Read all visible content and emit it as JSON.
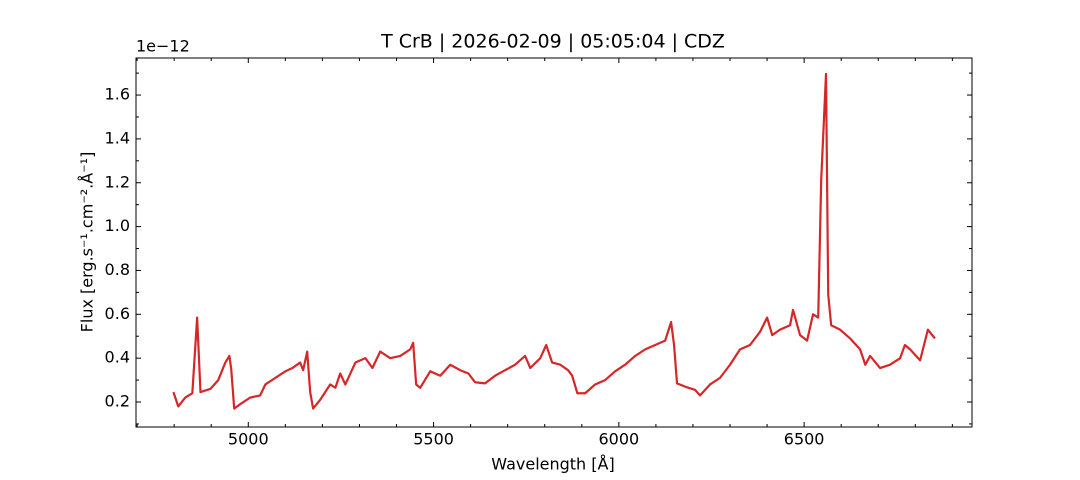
{
  "chart_data": {
    "type": "line",
    "title": "T CrB | 2026-02-09 | 05:05:04 | CDZ",
    "x_label": "Wavelength [Å]",
    "y_label": "Flux [erg.s⁻¹.cm⁻².Å⁻¹]",
    "y_offset_label": "1e−12",
    "color": "#d62728",
    "x": [
      4798,
      4811,
      4830,
      4849,
      4862,
      4871,
      4898,
      4919,
      4938,
      4949,
      4954,
      4962,
      4978,
      5005,
      5032,
      5046,
      5073,
      5100,
      5119,
      5140,
      5148,
      5159,
      5167,
      5175,
      5194,
      5221,
      5235,
      5248,
      5262,
      5289,
      5316,
      5335,
      5356,
      5383,
      5410,
      5437,
      5445,
      5453,
      5464,
      5491,
      5518,
      5545,
      5572,
      5594,
      5612,
      5639,
      5666,
      5693,
      5720,
      5747,
      5761,
      5788,
      5804,
      5820,
      5842,
      5863,
      5874,
      5888,
      5909,
      5936,
      5963,
      5990,
      6017,
      6044,
      6071,
      6098,
      6125,
      6141,
      6149,
      6157,
      6179,
      6206,
      6219,
      6246,
      6273,
      6300,
      6327,
      6354,
      6381,
      6400,
      6414,
      6435,
      6462,
      6470,
      6489,
      6508,
      6524,
      6538,
      6546,
      6559,
      6565,
      6573,
      6597,
      6624,
      6651,
      6665,
      6678,
      6705,
      6732,
      6759,
      6772,
      6786,
      6813,
      6834,
      6853
    ],
    "values": [
      0.245,
      0.18,
      0.22,
      0.24,
      0.585,
      0.245,
      0.26,
      0.3,
      0.38,
      0.41,
      0.35,
      0.17,
      0.19,
      0.22,
      0.23,
      0.28,
      0.31,
      0.34,
      0.355,
      0.38,
      0.345,
      0.43,
      0.245,
      0.17,
      0.21,
      0.28,
      0.265,
      0.33,
      0.28,
      0.38,
      0.4,
      0.355,
      0.43,
      0.4,
      0.41,
      0.44,
      0.47,
      0.28,
      0.265,
      0.34,
      0.32,
      0.37,
      0.345,
      0.33,
      0.29,
      0.285,
      0.32,
      0.345,
      0.37,
      0.41,
      0.355,
      0.4,
      0.46,
      0.38,
      0.37,
      0.345,
      0.32,
      0.24,
      0.24,
      0.28,
      0.3,
      0.34,
      0.37,
      0.41,
      0.44,
      0.46,
      0.48,
      0.565,
      0.46,
      0.285,
      0.27,
      0.255,
      0.23,
      0.28,
      0.31,
      0.37,
      0.44,
      0.46,
      0.52,
      0.585,
      0.505,
      0.53,
      0.55,
      0.62,
      0.505,
      0.48,
      0.6,
      0.585,
      1.21,
      1.696,
      0.69,
      0.55,
      0.53,
      0.49,
      0.44,
      0.37,
      0.41,
      0.355,
      0.37,
      0.4,
      0.46,
      0.44,
      0.39,
      0.53,
      0.49
    ],
    "xlim": [
      4697,
      6953
    ],
    "ylim": [
      0.086,
      1.769
    ],
    "xticks": [
      5000,
      5500,
      6000,
      6500
    ],
    "yticks": [
      0.2,
      0.4,
      0.6,
      0.8,
      {
        "value": 1,
        "label": "1.0"
      },
      1.2,
      1.4,
      1.6
    ],
    "xticks_minor": [
      4700,
      4800,
      4900,
      5100,
      5200,
      5300,
      5400,
      5600,
      5700,
      5800,
      5900,
      6100,
      6200,
      6300,
      6400,
      6600,
      6700,
      6800,
      6900
    ],
    "yticks_minor": [
      0.1,
      0.3,
      0.5,
      0.7,
      0.9,
      1.1,
      1.3,
      1.5,
      1.7
    ],
    "grid": false
  }
}
